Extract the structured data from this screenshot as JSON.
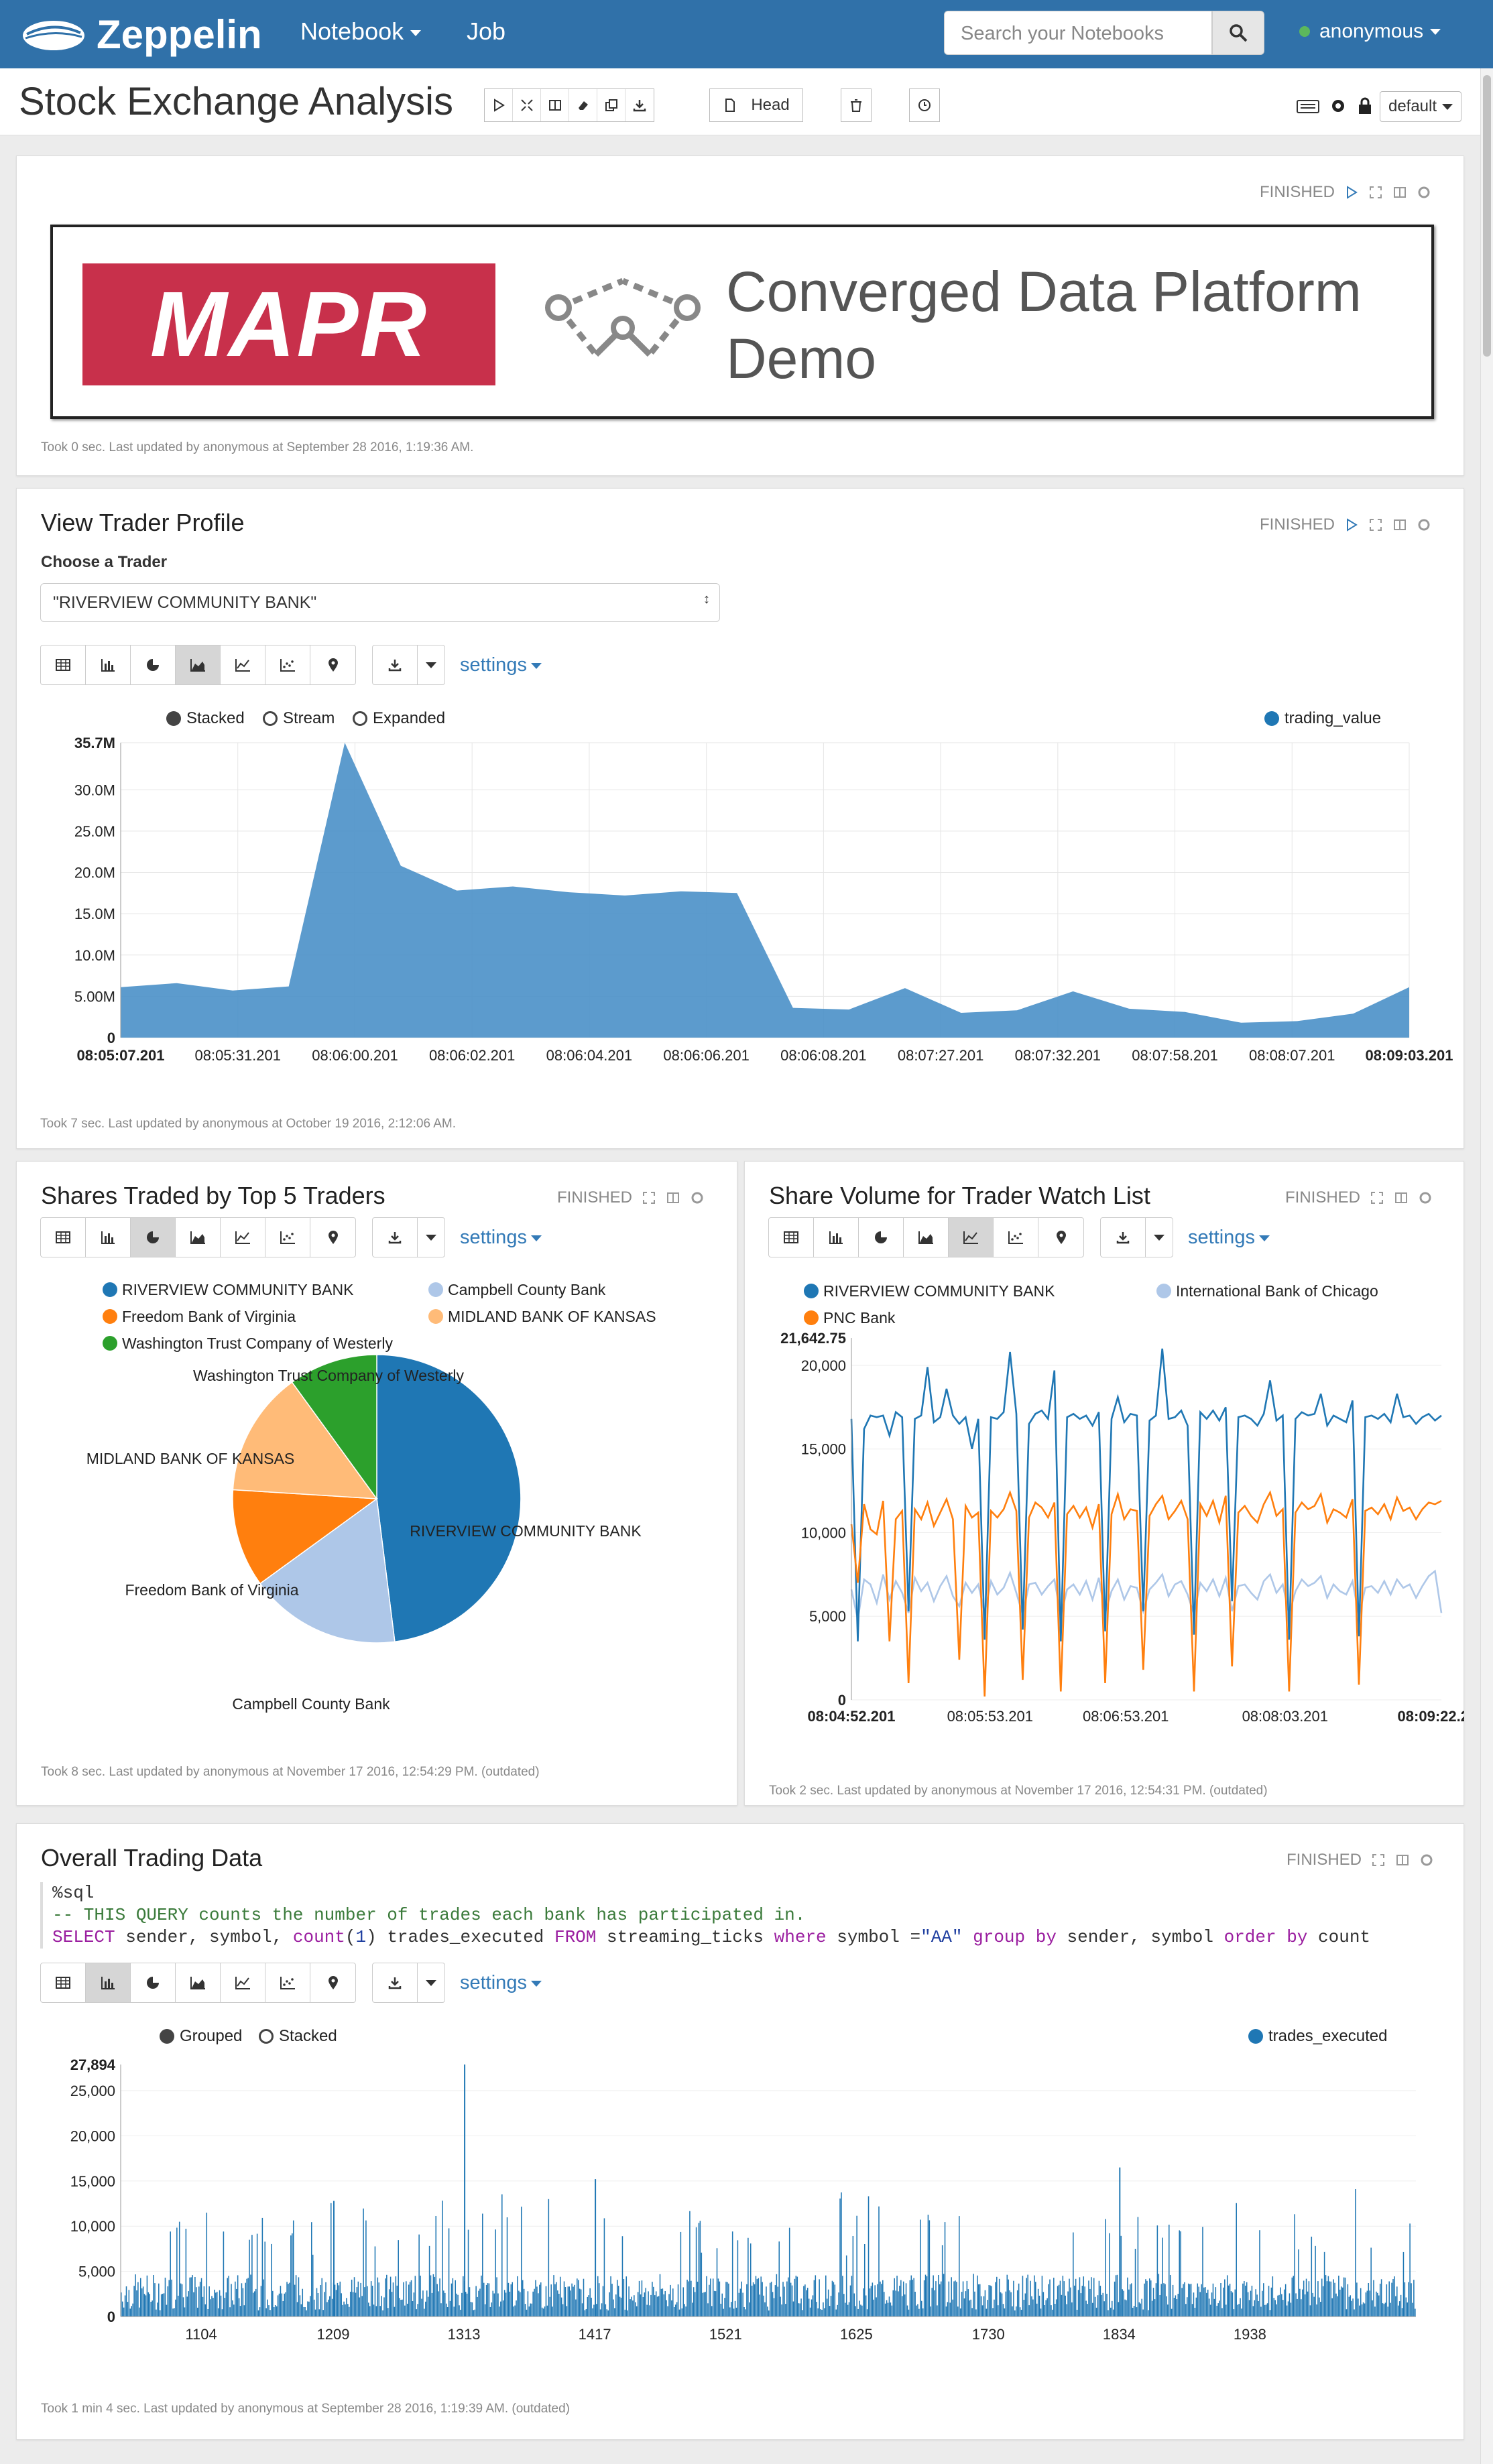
{
  "nav": {
    "brand": "Zeppelin",
    "notebook": "Notebook",
    "job": "Job",
    "search_placeholder": "Search your Notebooks",
    "user": "anonymous"
  },
  "header": {
    "title": "Stock Exchange Analysis",
    "head_label": "Head",
    "interpreter": "default"
  },
  "para1": {
    "status": "FINISHED",
    "banner_logo": "MAPR",
    "banner_text_1": "Converged Data Platform",
    "banner_text_2": "Demo",
    "footer": "Took 0 sec. Last updated by anonymous at September 28 2016, 1:19:36 AM.",
    "colors": {
      "mapr_red": "#c8304b"
    }
  },
  "para2": {
    "title": "View Trader Profile",
    "status": "FINISHED",
    "choose_label": "Choose a Trader",
    "selected": "\"RIVERVIEW COMMUNITY BANK\"",
    "settings": "settings",
    "modes": [
      "Stacked",
      "Stream",
      "Expanded"
    ],
    "legend": "trading_value",
    "footer": "Took 7 sec. Last updated by anonymous at October 19 2016, 2:12:06 AM."
  },
  "para3": {
    "title": "Shares Traded by Top 5 Traders",
    "status": "FINISHED",
    "settings": "settings",
    "footer": "Took 8 sec. Last updated by anonymous at November 17 2016, 12:54:29 PM. (outdated)"
  },
  "para4": {
    "title": "Share Volume for Trader Watch List",
    "status": "FINISHED",
    "settings": "settings",
    "footer": "Took 2 sec. Last updated by anonymous at November 17 2016, 12:54:31 PM. (outdated)"
  },
  "para5": {
    "title": "Overall Trading Data",
    "status": "FINISHED",
    "settings": "settings",
    "code_line1": "%sql",
    "code_line2": "-- THIS QUERY counts the number of trades each bank has participated in.",
    "code_line3_kw1": "SELECT",
    "code_line3_a": " sender, symbol, ",
    "code_line3_fn": "count",
    "code_line3_b": "(",
    "code_line3_num": "1",
    "code_line3_c": ") trades_executed ",
    "code_line3_kw2": "FROM",
    "code_line3_d": " streaming_ticks ",
    "code_line3_kw3": "where",
    "code_line3_e": " symbol =",
    "code_line3_str": "\"AA\"",
    "code_line3_f": " ",
    "code_line3_kw4": "group by",
    "code_line3_g": " sender, symbol ",
    "code_line3_kw5": "order by",
    "code_line3_h": " count",
    "modes": [
      "Grouped",
      "Stacked"
    ],
    "legend": "trades_executed",
    "footer": "Took 1 min 4 sec. Last updated by anonymous at September 28 2016, 1:19:39 AM. (outdated)"
  },
  "chart_data": [
    {
      "type": "area",
      "series": [
        {
          "name": "trading_value",
          "color": "#4a90c8",
          "values": [
            6.1,
            6.6,
            5.7,
            6.2,
            35.7,
            20.8,
            17.8,
            18.3,
            17.6,
            17.2,
            17.7,
            17.5,
            3.6,
            3.4,
            6.0,
            3.0,
            3.3,
            5.6,
            3.5,
            3.1,
            1.8,
            2.0,
            2.9,
            6.1
          ]
        }
      ],
      "x_ticks": [
        "08:05:07.201",
        "08:05:31.201",
        "08:06:00.201",
        "08:06:02.201",
        "08:06:04.201",
        "08:06:06.201",
        "08:06:08.201",
        "08:07:27.201",
        "08:07:32.201",
        "08:07:58.201",
        "08:08:07.201",
        "08:09:03.201"
      ],
      "y_ticks": [
        "0",
        "5.00M",
        "10.0M",
        "15.0M",
        "20.0M",
        "25.0M",
        "30.0M",
        "35.7M"
      ],
      "ylim": [
        0,
        35.7
      ]
    },
    {
      "type": "pie",
      "series": [
        {
          "name": "RIVERVIEW COMMUNITY BANK",
          "value": 48,
          "color": "#1f77b4"
        },
        {
          "name": "Campbell County Bank",
          "value": 17,
          "color": "#aec7e8"
        },
        {
          "name": "Freedom Bank of Virginia",
          "value": 11,
          "color": "#ff7f0e"
        },
        {
          "name": "MIDLAND BANK OF KANSAS",
          "value": 14,
          "color": "#ffbb78"
        },
        {
          "name": "Washington Trust Company of Westerly",
          "value": 10,
          "color": "#2ca02c"
        }
      ]
    },
    {
      "type": "line",
      "series": [
        {
          "name": "RIVERVIEW COMMUNITY BANK",
          "color": "#1f77b4",
          "values": [
            16800,
            3500,
            16200,
            17000,
            16900,
            17000,
            15800,
            17200,
            16900,
            5300,
            16800,
            17000,
            19900,
            16600,
            16900,
            18600,
            17000,
            16500,
            16900,
            15000,
            16800,
            3600,
            16900,
            16800,
            17200,
            20800,
            17100,
            4200,
            16500,
            17100,
            17300,
            16800,
            19700,
            3500,
            16900,
            17100,
            16800,
            17000,
            16400,
            17200,
            4100,
            16800,
            18100,
            16600,
            17100,
            17000,
            5300,
            16700,
            17000,
            21000,
            16800,
            16900,
            17300,
            16400,
            3900,
            17200,
            16800,
            17300,
            16700,
            17500,
            5900,
            16900,
            17000,
            16800,
            16400,
            17100,
            19100,
            16700,
            17000,
            3600,
            16800,
            17200,
            17000,
            17100,
            18300,
            16400,
            17000,
            16800,
            16600,
            17900,
            3800,
            16900,
            17000,
            16800,
            17100,
            16600,
            18300,
            16900,
            17000,
            16500,
            16900,
            17100,
            16700,
            17000
          ]
        },
        {
          "name": "International Bank of Chicago",
          "color": "#aec7e8",
          "values": [
            6600,
            4800,
            7200,
            6900,
            5800,
            7500,
            6000,
            7100,
            6400,
            5200,
            7300,
            6500,
            7000,
            5900,
            6800,
            7400,
            6200,
            5600,
            7000,
            6400,
            6900,
            5200,
            7100,
            6300,
            6700,
            7600,
            6400,
            5100,
            6900,
            7000,
            6300,
            6800,
            7200,
            5000,
            6600,
            6900,
            6300,
            7100,
            6000,
            7300,
            5200,
            6500,
            7200,
            6000,
            6800,
            6700,
            5300,
            6600,
            7000,
            7500,
            6200,
            6900,
            7100,
            6300,
            5100,
            7000,
            6500,
            7200,
            6200,
            7300,
            5300,
            6800,
            6900,
            6400,
            6000,
            7100,
            7500,
            6400,
            6900,
            5100,
            6500,
            7200,
            6800,
            7000,
            7400,
            6100,
            6900,
            6500,
            6300,
            7100,
            5000,
            6700,
            6800,
            6400,
            7100,
            6300,
            7200,
            6700,
            6900,
            6100,
            6800,
            7400,
            7700,
            5200
          ]
        },
        {
          "name": "PNC Bank",
          "color": "#ff7f0e",
          "values": [
            10500,
            7000,
            11700,
            10200,
            9900,
            11900,
            3500,
            10800,
            11300,
            1000,
            11400,
            10800,
            11800,
            10400,
            11200,
            12000,
            10800,
            2400,
            11600,
            10900,
            11200,
            200,
            11300,
            10900,
            11400,
            12400,
            11300,
            1200,
            10900,
            11800,
            11500,
            10900,
            11800,
            500,
            11100,
            11600,
            10900,
            11500,
            10300,
            11700,
            1000,
            11100,
            12300,
            10800,
            11400,
            11300,
            1800,
            11000,
            11700,
            12200,
            10800,
            11300,
            11900,
            10800,
            500,
            11700,
            11000,
            11900,
            10600,
            12200,
            2000,
            11200,
            11600,
            11000,
            10600,
            11700,
            12400,
            11000,
            11400,
            500,
            11200,
            11800,
            11400,
            11600,
            12300,
            10600,
            11400,
            11200,
            10900,
            12000,
            900,
            11300,
            11500,
            11100,
            11700,
            10800,
            12100,
            11300,
            11500,
            10800,
            11400,
            11800,
            11700,
            11900
          ]
        }
      ],
      "x_ticks": [
        "08:04:52.201",
        "08:05:53.201",
        "08:06:53.201",
        "08:08:03.201",
        "08:09:22.201"
      ],
      "y_ticks": [
        "0",
        "5,000",
        "10,000",
        "15,000",
        "20,000",
        "21,642.75"
      ],
      "ylim": [
        0,
        21642.75
      ]
    },
    {
      "type": "bar",
      "series": [
        {
          "name": "trades_executed",
          "color": "#1f77b4"
        }
      ],
      "x_ticks": [
        "1104",
        "1209",
        "1313",
        "1417",
        "1521",
        "1625",
        "1730",
        "1834",
        "1938"
      ],
      "y_ticks": [
        "0",
        "5,000",
        "10,000",
        "15,000",
        "20,000",
        "25,000",
        "27,894"
      ],
      "ylim": [
        0,
        27894
      ],
      "peaks": [
        {
          "x": 1313,
          "value": 27894
        },
        {
          "x": 1417,
          "value": 15200
        },
        {
          "x": 1834,
          "value": 16500
        },
        {
          "x": 1209,
          "value": 12800
        }
      ],
      "typical_value": 4500,
      "bar_count": 1000
    }
  ]
}
